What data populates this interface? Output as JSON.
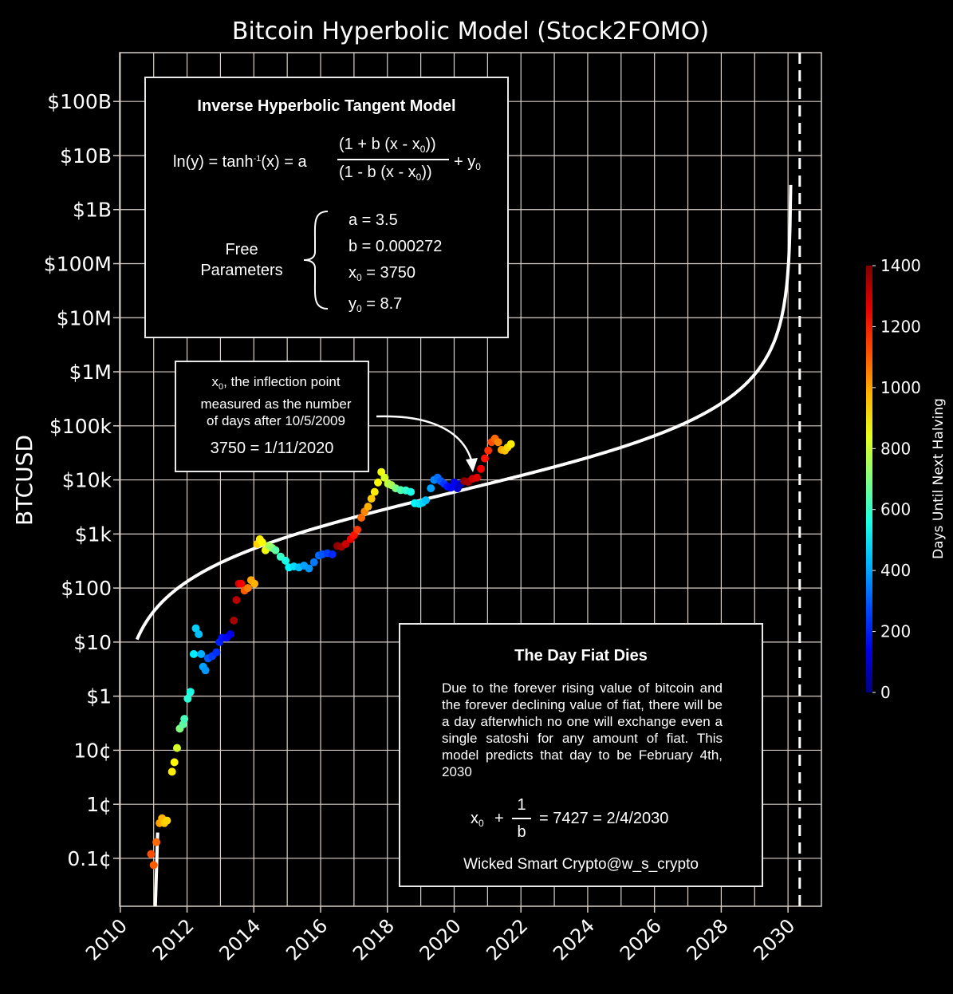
{
  "colors": {
    "background": "#000000",
    "grid": "#d8cfc8",
    "curve": "#ffffff",
    "text": "#ffffff"
  },
  "model_box": {
    "title": "Inverse Hyperbolic Tangent Model",
    "formula_lhs": "ln(y) = tanh",
    "formula_sup": "-1",
    "formula_mid": "(x) = a",
    "numerator": "(1 + b (x - x",
    "numerator_end": "))",
    "denominator": "(1 - b (x - x",
    "denominator_end": "))",
    "formula_tail": "+ y",
    "sub0": "0",
    "free_label": "Free",
    "params_label": "Parameters",
    "params": [
      {
        "name": "a",
        "value": "= 3.5"
      },
      {
        "name": "b",
        "value": "= 0.000272"
      },
      {
        "name": "x",
        "sub": "0",
        "value": "= 3750"
      },
      {
        "name": "y",
        "sub": "0",
        "value": "= 8.7"
      }
    ]
  },
  "inflection_box": {
    "line1_a": "x",
    "line1_sub": "0",
    "line1_b": ", the inflection point",
    "line2": "measured as the number",
    "line3": "of days after 10/5/2009",
    "equation": "3750 = 1/11/2020"
  },
  "fiat_box": {
    "title": "The Day Fiat Dies",
    "body": "Due to the forever rising value of bitcoin and the forever declining value of fiat, there will be a day afterwhich no one will exchange even a single satoshi for any amount of fiat. This model predicts that day to be February 4th, 2030",
    "eq_x": "x",
    "eq_sub": "0",
    "eq_plus": "+",
    "eq_num": "1",
    "eq_den": "b",
    "eq_rest": "= 7427 = 2/4/2030",
    "credit": "Wicked Smart Crypto@w_s_crypto"
  },
  "chart_data": {
    "type": "scatter",
    "title": "Bitcoin Hyperbolic Model (Stock2FOMO)",
    "ylabel": "BTCUSD",
    "xlabel": "",
    "x_ticks": [
      "2010",
      "2012",
      "2014",
      "2016",
      "2018",
      "2020",
      "2022",
      "2024",
      "2026",
      "2028",
      "2030"
    ],
    "x_tick_values": [
      2010,
      2012,
      2014,
      2016,
      2018,
      2020,
      2022,
      2024,
      2026,
      2028,
      2030
    ],
    "y_scale": "log",
    "y_ticks": [
      "0.1¢",
      "1¢",
      "10¢",
      "$1",
      "$10",
      "$100",
      "$1k",
      "$10k",
      "$100k",
      "$1M",
      "$10M",
      "$100M",
      "$1B",
      "$10B",
      "$100B"
    ],
    "y_tick_values": [
      0.001,
      0.01,
      0.1,
      1,
      10,
      100,
      1000,
      10000,
      100000,
      1000000,
      10000000,
      100000000,
      1000000000,
      10000000000,
      100000000000
    ],
    "xlim": [
      2009.98,
      2031.0
    ],
    "ylim": [
      0.00013,
      800000000000
    ],
    "grid": true,
    "colorbar": {
      "label": "Days Until Next Halving",
      "min": 0,
      "max": 1400,
      "ticks": [
        "0",
        "200",
        "400",
        "600",
        "800",
        "1000",
        "1200",
        "1400"
      ]
    },
    "model": {
      "a": 3.5,
      "b": 0.000272,
      "x0": 3750,
      "y0": 8.7,
      "epoch": "10/5/2009"
    },
    "asymptote_x": 2030.35,
    "points": [
      [
        2010.92,
        0.0012,
        1120
      ],
      [
        2011.0,
        0.00075,
        1100
      ],
      [
        2011.08,
        0.002,
        1080
      ],
      [
        2011.18,
        0.0045,
        1000
      ],
      [
        2011.25,
        0.0055,
        980
      ],
      [
        2011.32,
        0.0045,
        950
      ],
      [
        2011.4,
        0.005,
        930
      ],
      [
        2011.55,
        0.04,
        900
      ],
      [
        2011.62,
        0.06,
        880
      ],
      [
        2011.7,
        0.11,
        820
      ],
      [
        2011.78,
        0.25,
        700
      ],
      [
        2011.88,
        0.3,
        650
      ],
      [
        2011.92,
        0.38,
        620
      ],
      [
        2012.02,
        0.9,
        580
      ],
      [
        2012.1,
        1.2,
        560
      ],
      [
        2012.2,
        6,
        500
      ],
      [
        2012.26,
        18,
        460
      ],
      [
        2012.35,
        14,
        440
      ],
      [
        2012.42,
        6,
        420
      ],
      [
        2012.48,
        3.5,
        400
      ],
      [
        2012.55,
        3,
        380
      ],
      [
        2012.63,
        5,
        300
      ],
      [
        2012.75,
        5.5,
        260
      ],
      [
        2012.88,
        6.5,
        240
      ],
      [
        2012.97,
        10,
        220
      ],
      [
        2013.05,
        12,
        200
      ],
      [
        2013.18,
        12,
        180
      ],
      [
        2013.3,
        14,
        150
      ],
      [
        2013.4,
        25,
        1350
      ],
      [
        2013.48,
        60,
        1320
      ],
      [
        2013.55,
        120,
        1300
      ],
      [
        2013.62,
        120,
        1240
      ],
      [
        2013.72,
        90,
        1100
      ],
      [
        2013.82,
        100,
        1050
      ],
      [
        2013.92,
        140,
        1000
      ],
      [
        2014.02,
        120,
        980
      ],
      [
        2014.1,
        650,
        940
      ],
      [
        2014.18,
        800,
        900
      ],
      [
        2014.25,
        700,
        880
      ],
      [
        2014.35,
        500,
        860
      ],
      [
        2014.45,
        600,
        760
      ],
      [
        2014.55,
        550,
        720
      ],
      [
        2014.65,
        500,
        650
      ],
      [
        2014.8,
        380,
        600
      ],
      [
        2014.95,
        320,
        560
      ],
      [
        2015.05,
        240,
        520
      ],
      [
        2015.2,
        250,
        480
      ],
      [
        2015.35,
        240,
        440
      ],
      [
        2015.5,
        260,
        400
      ],
      [
        2015.65,
        230,
        380
      ],
      [
        2015.8,
        300,
        340
      ],
      [
        2015.95,
        400,
        320
      ],
      [
        2016.05,
        420,
        290
      ],
      [
        2016.2,
        440,
        260
      ],
      [
        2016.35,
        420,
        230
      ],
      [
        2016.5,
        600,
        1380
      ],
      [
        2016.62,
        580,
        1350
      ],
      [
        2016.75,
        650,
        1300
      ],
      [
        2016.9,
        800,
        1250
      ],
      [
        2017.0,
        950,
        1200
      ],
      [
        2017.1,
        1200,
        1150
      ],
      [
        2017.22,
        2000,
        1080
      ],
      [
        2017.32,
        2600,
        1040
      ],
      [
        2017.42,
        3200,
        980
      ],
      [
        2017.52,
        4500,
        950
      ],
      [
        2017.62,
        6000,
        900
      ],
      [
        2017.72,
        9000,
        880
      ],
      [
        2017.82,
        14000,
        860
      ],
      [
        2017.92,
        11000,
        820
      ],
      [
        2018.02,
        8500,
        790
      ],
      [
        2018.12,
        8000,
        760
      ],
      [
        2018.25,
        7000,
        700
      ],
      [
        2018.4,
        6500,
        640
      ],
      [
        2018.55,
        6400,
        600
      ],
      [
        2018.7,
        6000,
        560
      ],
      [
        2018.82,
        3700,
        520
      ],
      [
        2018.95,
        3600,
        500
      ],
      [
        2019.05,
        3800,
        470
      ],
      [
        2019.15,
        4200,
        440
      ],
      [
        2019.3,
        7000,
        400
      ],
      [
        2019.4,
        10000,
        360
      ],
      [
        2019.5,
        11000,
        330
      ],
      [
        2019.6,
        9500,
        300
      ],
      [
        2019.7,
        8500,
        250
      ],
      [
        2019.8,
        7500,
        200
      ],
      [
        2019.9,
        7200,
        180
      ],
      [
        2020.0,
        9000,
        150
      ],
      [
        2020.1,
        7000,
        110
      ],
      [
        2020.2,
        8500,
        80
      ],
      [
        2020.3,
        9500,
        1380
      ],
      [
        2020.42,
        9200,
        1350
      ],
      [
        2020.55,
        10500,
        1300
      ],
      [
        2020.68,
        11000,
        1270
      ],
      [
        2020.8,
        16000,
        1230
      ],
      [
        2020.92,
        25000,
        1200
      ],
      [
        2021.02,
        35000,
        1160
      ],
      [
        2021.12,
        50000,
        1120
      ],
      [
        2021.22,
        58000,
        1080
      ],
      [
        2021.32,
        50000,
        1040
      ],
      [
        2021.42,
        36000,
        1000
      ],
      [
        2021.52,
        35000,
        960
      ],
      [
        2021.6,
        40000,
        930
      ],
      [
        2021.7,
        46000,
        900
      ]
    ]
  }
}
